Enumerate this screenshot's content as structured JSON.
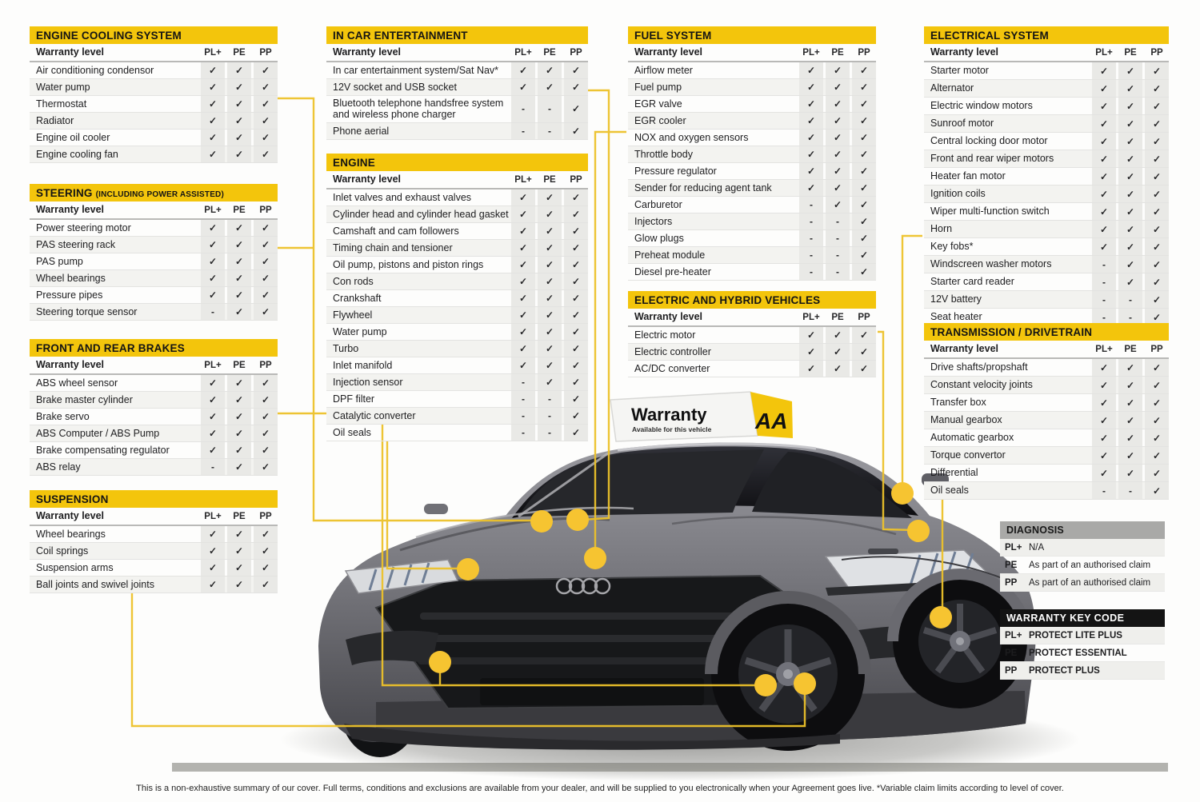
{
  "header_label": "Warranty level",
  "columns": [
    "PL+",
    "PE",
    "PP"
  ],
  "glyphs": {
    "tick": "✓",
    "dash": "-"
  },
  "colors": {
    "accent": "#F3C50C",
    "line": "#EDC22A",
    "dot": "#F6C431",
    "diagnosis_header": "#A9A9A7",
    "keycode_header": "#141414"
  },
  "tables": [
    {
      "id": "engine-cooling",
      "title": "ENGINE COOLING SYSTEM",
      "suffix": "",
      "rows": [
        [
          "Air conditioning condensor",
          1,
          1,
          1
        ],
        [
          "Water pump",
          1,
          1,
          1
        ],
        [
          "Thermostat",
          1,
          1,
          1
        ],
        [
          "Radiator",
          1,
          1,
          1
        ],
        [
          "Engine oil cooler",
          1,
          1,
          1
        ],
        [
          "Engine cooling fan",
          1,
          1,
          1
        ]
      ]
    },
    {
      "id": "steering",
      "title": "STEERING",
      "suffix": "(INCLUDING POWER ASSISTED)",
      "rows": [
        [
          "Power steering motor",
          1,
          1,
          1
        ],
        [
          "PAS steering rack",
          1,
          1,
          1
        ],
        [
          "PAS pump",
          1,
          1,
          1
        ],
        [
          "Wheel bearings",
          1,
          1,
          1
        ],
        [
          "Pressure pipes",
          1,
          1,
          1
        ],
        [
          "Steering torque sensor",
          0,
          1,
          1
        ]
      ]
    },
    {
      "id": "brakes",
      "title": "FRONT AND REAR BRAKES",
      "suffix": "",
      "rows": [
        [
          "ABS wheel sensor",
          1,
          1,
          1
        ],
        [
          "Brake master cylinder",
          1,
          1,
          1
        ],
        [
          "Brake servo",
          1,
          1,
          1
        ],
        [
          "ABS Computer / ABS Pump",
          1,
          1,
          1
        ],
        [
          "Brake compensating regulator",
          1,
          1,
          1
        ],
        [
          "ABS relay",
          0,
          1,
          1
        ]
      ]
    },
    {
      "id": "suspension",
      "title": "SUSPENSION",
      "suffix": "",
      "rows": [
        [
          "Wheel bearings",
          1,
          1,
          1
        ],
        [
          "Coil springs",
          1,
          1,
          1
        ],
        [
          "Suspension arms",
          1,
          1,
          1
        ],
        [
          "Ball joints and swivel joints",
          1,
          1,
          1
        ]
      ]
    },
    {
      "id": "ice",
      "title": "IN CAR ENTERTAINMENT",
      "suffix": "",
      "rows": [
        [
          "In car entertainment system/Sat Nav*",
          1,
          1,
          1
        ],
        [
          "12V socket and USB socket",
          1,
          1,
          1
        ],
        [
          "Bluetooth telephone handsfree system and wireless phone charger",
          0,
          0,
          1
        ],
        [
          "Phone aerial",
          0,
          0,
          1
        ]
      ]
    },
    {
      "id": "engine",
      "title": "ENGINE",
      "suffix": "",
      "rows": [
        [
          "Inlet valves and exhaust valves",
          1,
          1,
          1
        ],
        [
          "Cylinder head and cylinder head gasket",
          1,
          1,
          1
        ],
        [
          "Camshaft and cam followers",
          1,
          1,
          1
        ],
        [
          "Timing chain and tensioner",
          1,
          1,
          1
        ],
        [
          "Oil pump, pistons and piston rings",
          1,
          1,
          1
        ],
        [
          "Con rods",
          1,
          1,
          1
        ],
        [
          "Crankshaft",
          1,
          1,
          1
        ],
        [
          "Flywheel",
          1,
          1,
          1
        ],
        [
          "Water pump",
          1,
          1,
          1
        ],
        [
          "Turbo",
          1,
          1,
          1
        ],
        [
          "Inlet manifold",
          1,
          1,
          1
        ],
        [
          "Injection sensor",
          0,
          1,
          1
        ],
        [
          "DPF filter",
          0,
          0,
          1
        ],
        [
          "Catalytic converter",
          0,
          0,
          1
        ],
        [
          "Oil seals",
          0,
          0,
          1
        ]
      ]
    },
    {
      "id": "fuel",
      "title": "FUEL SYSTEM",
      "suffix": "",
      "rows": [
        [
          "Airflow meter",
          1,
          1,
          1
        ],
        [
          "Fuel pump",
          1,
          1,
          1
        ],
        [
          "EGR valve",
          1,
          1,
          1
        ],
        [
          "EGR cooler",
          1,
          1,
          1
        ],
        [
          "NOX and oxygen sensors",
          1,
          1,
          1
        ],
        [
          "Throttle body",
          1,
          1,
          1
        ],
        [
          "Pressure regulator",
          1,
          1,
          1
        ],
        [
          "Sender for reducing agent tank",
          1,
          1,
          1
        ],
        [
          "Carburetor",
          0,
          1,
          1
        ],
        [
          "Injectors",
          0,
          0,
          1
        ],
        [
          "Glow plugs",
          0,
          0,
          1
        ],
        [
          "Preheat module",
          0,
          0,
          1
        ],
        [
          "Diesel pre-heater",
          0,
          0,
          1
        ]
      ]
    },
    {
      "id": "hybrid",
      "title": "ELECTRIC AND HYBRID VEHICLES",
      "suffix": "",
      "rows": [
        [
          "Electric motor",
          1,
          1,
          1
        ],
        [
          "Electric controller",
          1,
          1,
          1
        ],
        [
          "AC/DC converter",
          1,
          1,
          1
        ]
      ]
    },
    {
      "id": "electrical",
      "title": "ELECTRICAL SYSTEM",
      "suffix": "",
      "rows": [
        [
          "Starter motor",
          1,
          1,
          1
        ],
        [
          "Alternator",
          1,
          1,
          1
        ],
        [
          "Electric window motors",
          1,
          1,
          1
        ],
        [
          "Sunroof motor",
          1,
          1,
          1
        ],
        [
          "Central locking door motor",
          1,
          1,
          1
        ],
        [
          "Front and rear wiper motors",
          1,
          1,
          1
        ],
        [
          "Heater fan motor",
          1,
          1,
          1
        ],
        [
          "Ignition coils",
          1,
          1,
          1
        ],
        [
          "Wiper multi-function switch",
          1,
          1,
          1
        ],
        [
          "Horn",
          1,
          1,
          1
        ],
        [
          "Key fobs*",
          1,
          1,
          1
        ],
        [
          "Windscreen washer motors",
          0,
          1,
          1
        ],
        [
          "Starter card reader",
          0,
          1,
          1
        ],
        [
          "12V battery",
          0,
          0,
          1
        ],
        [
          "Seat heater",
          0,
          0,
          1
        ]
      ]
    },
    {
      "id": "transmission",
      "title": "TRANSMISSION / DRIVETRAIN",
      "suffix": "",
      "rows": [
        [
          "Drive shafts/propshaft",
          1,
          1,
          1
        ],
        [
          "Constant velocity joints",
          1,
          1,
          1
        ],
        [
          "Transfer box",
          1,
          1,
          1
        ],
        [
          "Manual gearbox",
          1,
          1,
          1
        ],
        [
          "Automatic gearbox",
          1,
          1,
          1
        ],
        [
          "Torque convertor",
          1,
          1,
          1
        ],
        [
          "Differential",
          1,
          1,
          1
        ],
        [
          "Oil seals",
          0,
          0,
          1
        ]
      ]
    }
  ],
  "diagnosis": {
    "title": "DIAGNOSIS",
    "rows": [
      [
        "PL+",
        "N/A"
      ],
      [
        "PE",
        "As part of an authorised claim"
      ],
      [
        "PP",
        "As part of an authorised claim"
      ]
    ]
  },
  "key_code": {
    "title": "WARRANTY KEY CODE",
    "rows": [
      [
        "PL+",
        "PROTECT LITE PLUS"
      ],
      [
        "PE",
        "PROTECT ESSENTIAL"
      ],
      [
        "PP",
        "PROTECT PLUS"
      ]
    ]
  },
  "roof_sign": {
    "title": "Warranty",
    "subtitle": "Available for this vehicle",
    "logo": "AA"
  },
  "footer": "This is a non-exhaustive summary of our cover. Full terms, conditions and exclusions are available from your dealer, and will be supplied to you electronically when your Agreement goes live. *Variable claim  limits according to level of cover."
}
